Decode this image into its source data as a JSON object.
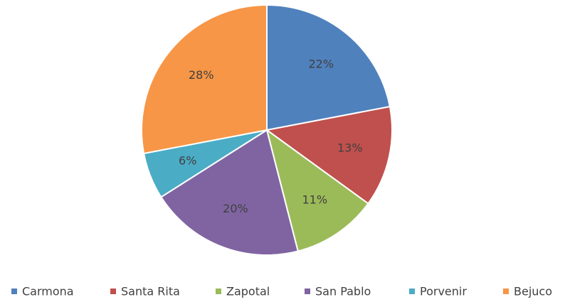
{
  "chart_data": {
    "type": "pie",
    "categories": [
      "Carmona",
      "Santa Rita",
      "Zapotal",
      "San Pablo",
      "Porvenir",
      "Bejuco"
    ],
    "values": [
      22,
      13,
      11,
      20,
      6,
      28
    ],
    "value_labels": [
      "22%",
      "13%",
      "11%",
      "20%",
      "6%",
      "28%"
    ],
    "colors": [
      "#4f81bd",
      "#c0504d",
      "#9bbb59",
      "#8064a2",
      "#4bacc6",
      "#f79646"
    ],
    "legend": "bottom"
  }
}
